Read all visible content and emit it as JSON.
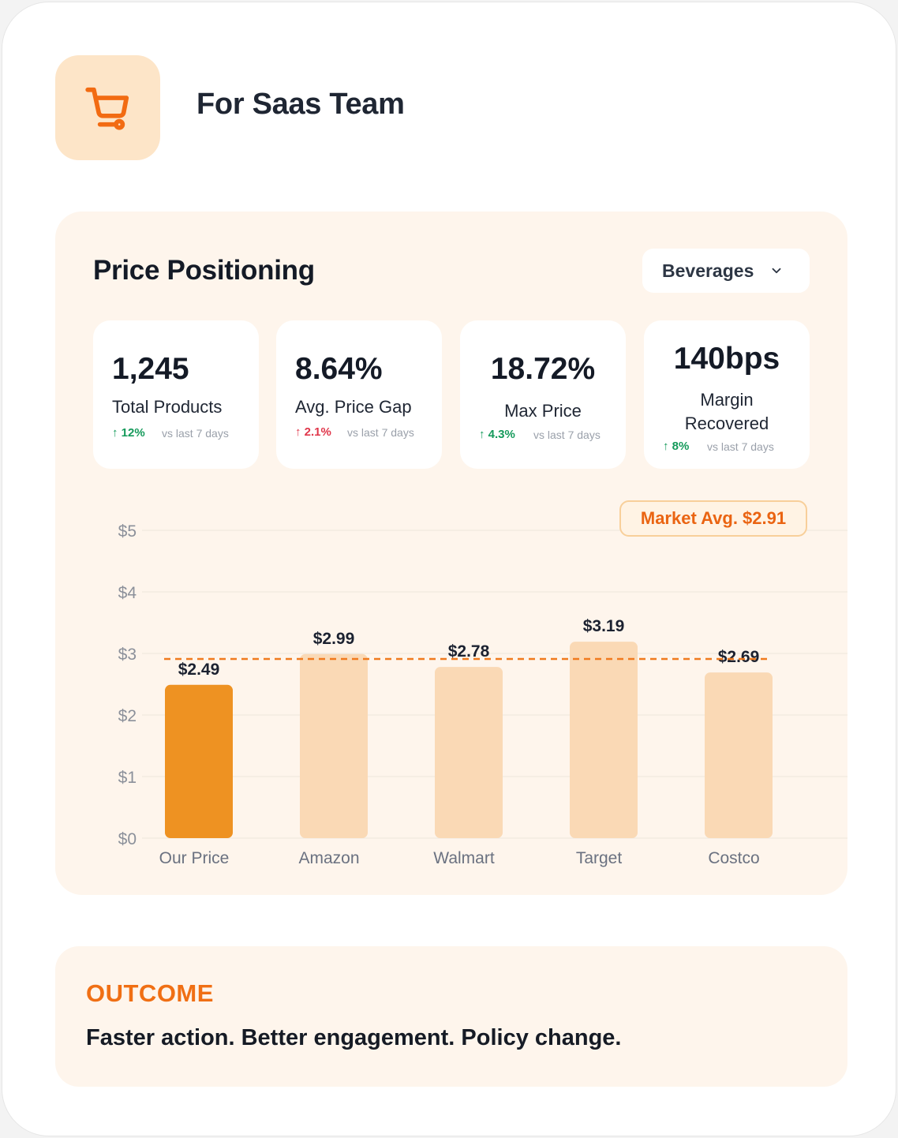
{
  "header": {
    "title": "For Saas Team",
    "icon": "shopping-cart-icon",
    "accent": "#f26b12"
  },
  "panel": {
    "title": "Price Positioning",
    "category_select": {
      "selected": "Beverages"
    }
  },
  "stats": [
    {
      "value": "1,245",
      "label": "Total Products",
      "delta": "↑ 12%",
      "direction": "up",
      "compare": "vs last 7 days"
    },
    {
      "value": "8.64%",
      "label": "Avg. Price Gap",
      "delta": "↑ 2.1%",
      "direction": "down",
      "compare": "vs last 7 days"
    },
    {
      "value": "18.72%",
      "label": "Max Price",
      "delta": "↑ 4.3%",
      "direction": "up",
      "compare": "vs last 7 days"
    },
    {
      "value": "140bps",
      "label_line1": "Margin",
      "label_line2": "Recovered",
      "delta": "↑ 8%",
      "direction": "up",
      "compare": "vs last 7 days"
    }
  ],
  "chart_data": {
    "type": "bar",
    "categories": [
      "Our Price",
      "Amazon",
      "Walmart",
      "Target",
      "Costco"
    ],
    "values": [
      2.49,
      2.99,
      2.78,
      3.19,
      2.69
    ],
    "value_labels": [
      "$2.49",
      "$2.99",
      "$2.78",
      "$3.19",
      "$2.69"
    ],
    "y_ticks": [
      "$0",
      "$1",
      "$2",
      "$3",
      "$4",
      "$5"
    ],
    "ylim": [
      0,
      5
    ],
    "reference_line": {
      "value": 2.91,
      "label": "Market Avg. $2.91",
      "style": "dashed"
    },
    "highlight_color": "#ee9222",
    "bar_color": "#fad9b5",
    "grid": true
  },
  "outcome": {
    "title": "OUTCOME",
    "text": "Faster action. Better engagement. Policy change."
  }
}
